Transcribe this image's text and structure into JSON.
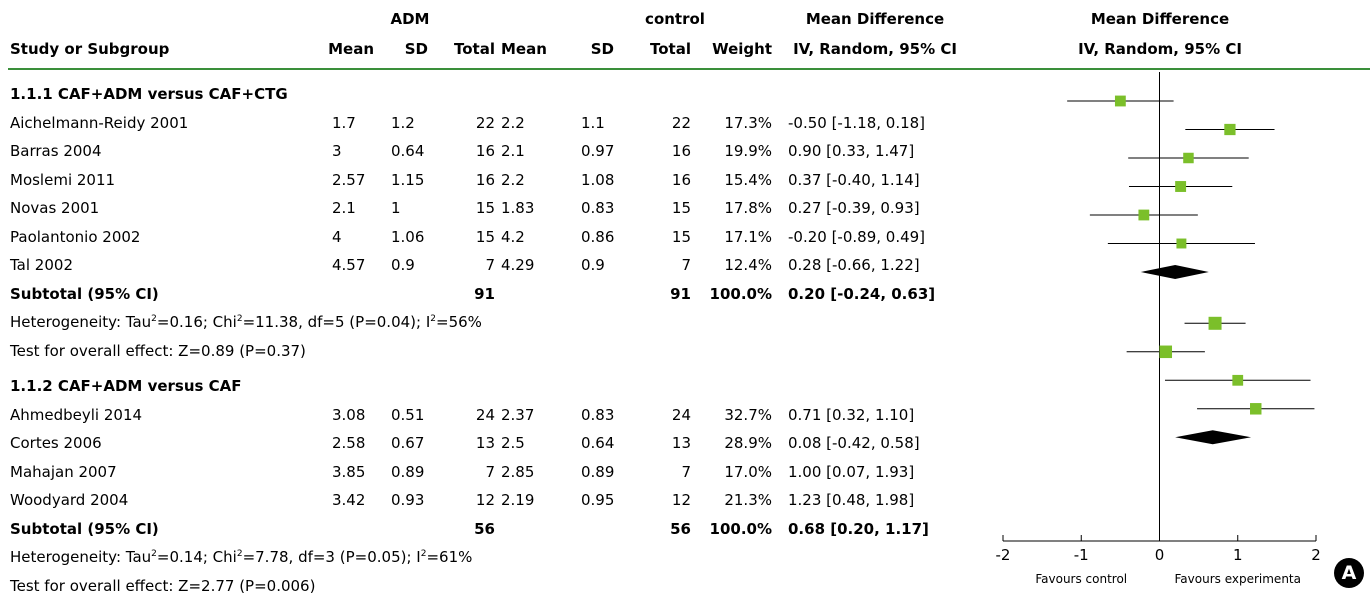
{
  "header": {
    "group1": "ADM",
    "group2": "control",
    "md_title": "Mean Difference",
    "md_sub": "IV, Random, 95% CI",
    "plot_title": "Mean Difference",
    "plot_sub": "IV, Random, 95% CI",
    "cols": [
      "Study or Subgroup",
      "Mean",
      "SD",
      "Total",
      "Mean",
      "SD",
      "Total",
      "Weight"
    ]
  },
  "subgroups": [
    {
      "title": "1.1.1 CAF+ADM versus CAF+CTG",
      "studies": [
        {
          "name": "Aichelmann-Reidy 2001",
          "m1": "1.7",
          "sd1": "1.2",
          "n1": "22",
          "m2": "2.2",
          "sd2": "1.1",
          "n2": "22",
          "weight": "17.3%",
          "ci": "-0.50 [-1.18, 0.18]"
        },
        {
          "name": "Barras 2004",
          "m1": "3",
          "sd1": "0.64",
          "n1": "16",
          "m2": "2.1",
          "sd2": "0.97",
          "n2": "16",
          "weight": "19.9%",
          "ci": "0.90 [0.33, 1.47]"
        },
        {
          "name": "Moslemi 2011",
          "m1": "2.57",
          "sd1": "1.15",
          "n1": "16",
          "m2": "2.2",
          "sd2": "1.08",
          "n2": "16",
          "weight": "15.4%",
          "ci": "0.37 [-0.40, 1.14]"
        },
        {
          "name": "Novas 2001",
          "m1": "2.1",
          "sd1": "1",
          "n1": "15",
          "m2": "1.83",
          "sd2": "0.83",
          "n2": "15",
          "weight": "17.8%",
          "ci": "0.27 [-0.39, 0.93]"
        },
        {
          "name": "Paolantonio 2002",
          "m1": "4",
          "sd1": "1.06",
          "n1": "15",
          "m2": "4.2",
          "sd2": "0.86",
          "n2": "15",
          "weight": "17.1%",
          "ci": "-0.20 [-0.89, 0.49]"
        },
        {
          "name": "Tal 2002",
          "m1": "4.57",
          "sd1": "0.9",
          "n1": "7",
          "m2": "4.29",
          "sd2": "0.9",
          "n2": "7",
          "weight": "12.4%",
          "ci": "0.28 [-0.66, 1.22]"
        }
      ],
      "subtotal": {
        "label": "Subtotal (95% CI)",
        "n1": "91",
        "n2": "91",
        "weight": "100.0%",
        "ci": "0.20 [-0.24, 0.63]"
      },
      "heterogeneity": {
        "a": "Heterogeneity: Tau",
        "b": "=0.16; Chi",
        "c": "=11.38, df=5 (P=0.04); I",
        "d": "=56%"
      },
      "overall": "Test for overall effect: Z=0.89 (P=0.37)"
    },
    {
      "title": "1.1.2 CAF+ADM versus CAF",
      "studies": [
        {
          "name": "Ahmedbeyli 2014",
          "m1": "3.08",
          "sd1": "0.51",
          "n1": "24",
          "m2": "2.37",
          "sd2": "0.83",
          "n2": "24",
          "weight": "32.7%",
          "ci": "0.71 [0.32, 1.10]"
        },
        {
          "name": "Cortes 2006",
          "m1": "2.58",
          "sd1": "0.67",
          "n1": "13",
          "m2": "2.5",
          "sd2": "0.64",
          "n2": "13",
          "weight": "28.9%",
          "ci": "0.08 [-0.42, 0.58]"
        },
        {
          "name": "Mahajan 2007",
          "m1": "3.85",
          "sd1": "0.89",
          "n1": "7",
          "m2": "2.85",
          "sd2": "0.89",
          "n2": "7",
          "weight": "17.0%",
          "ci": "1.00 [0.07, 1.93]"
        },
        {
          "name": "Woodyard 2004",
          "m1": "3.42",
          "sd1": "0.93",
          "n1": "12",
          "m2": "2.19",
          "sd2": "0.95",
          "n2": "12",
          "weight": "21.3%",
          "ci": "1.23 [0.48, 1.98]"
        }
      ],
      "subtotal": {
        "label": "Subtotal (95% CI)",
        "n1": "56",
        "n2": "56",
        "weight": "100.0%",
        "ci": "0.68 [0.20, 1.17]"
      },
      "heterogeneity": {
        "a": "Heterogeneity: Tau",
        "b": "=0.14; Chi",
        "c": "=7.78, df=3 (P=0.05); I",
        "d": "=61%"
      },
      "overall": "Test for overall effect: Z=2.77 (P=0.006)"
    }
  ],
  "chart_data": {
    "type": "forest",
    "title": "Mean Difference IV, Random, 95% CI",
    "xlim": [
      -2,
      2
    ],
    "xticks": [
      "-2",
      "-1",
      "0",
      "1",
      "2"
    ],
    "favours_left": "Favours control",
    "favours_right": "Favours experimenta",
    "series": [
      {
        "name": "1.1.1 CAF+ADM versus CAF+CTG",
        "points": [
          {
            "study": "Aichelmann-Reidy 2001",
            "md": -0.5,
            "lo": -1.18,
            "hi": 0.18,
            "weight": 17.3
          },
          {
            "study": "Barras 2004",
            "md": 0.9,
            "lo": 0.33,
            "hi": 1.47,
            "weight": 19.9
          },
          {
            "study": "Moslemi 2011",
            "md": 0.37,
            "lo": -0.4,
            "hi": 1.14,
            "weight": 15.4
          },
          {
            "study": "Novas 2001",
            "md": 0.27,
            "lo": -0.39,
            "hi": 0.93,
            "weight": 17.8
          },
          {
            "study": "Paolantonio 2002",
            "md": -0.2,
            "lo": -0.89,
            "hi": 0.49,
            "weight": 17.1
          },
          {
            "study": "Tal 2002",
            "md": 0.28,
            "lo": -0.66,
            "hi": 1.22,
            "weight": 12.4
          }
        ],
        "pooled": {
          "md": 0.2,
          "lo": -0.24,
          "hi": 0.63
        }
      },
      {
        "name": "1.1.2 CAF+ADM versus CAF",
        "points": [
          {
            "study": "Ahmedbeyli 2014",
            "md": 0.71,
            "lo": 0.32,
            "hi": 1.1,
            "weight": 32.7
          },
          {
            "study": "Cortes 2006",
            "md": 0.08,
            "lo": -0.42,
            "hi": 0.58,
            "weight": 28.9
          },
          {
            "study": "Mahajan 2007",
            "md": 1.0,
            "lo": 0.07,
            "hi": 1.93,
            "weight": 17.0
          },
          {
            "study": "Woodyard 2004",
            "md": 1.23,
            "lo": 0.48,
            "hi": 1.98,
            "weight": 21.3
          }
        ],
        "pooled": {
          "md": 0.68,
          "lo": 0.2,
          "hi": 1.17
        }
      }
    ],
    "colors": {
      "square": "#7bbf2a",
      "diamond": "#000000",
      "ci_line": "#000000",
      "header_rule": "#3a8f3a"
    },
    "panel_label": "A"
  }
}
